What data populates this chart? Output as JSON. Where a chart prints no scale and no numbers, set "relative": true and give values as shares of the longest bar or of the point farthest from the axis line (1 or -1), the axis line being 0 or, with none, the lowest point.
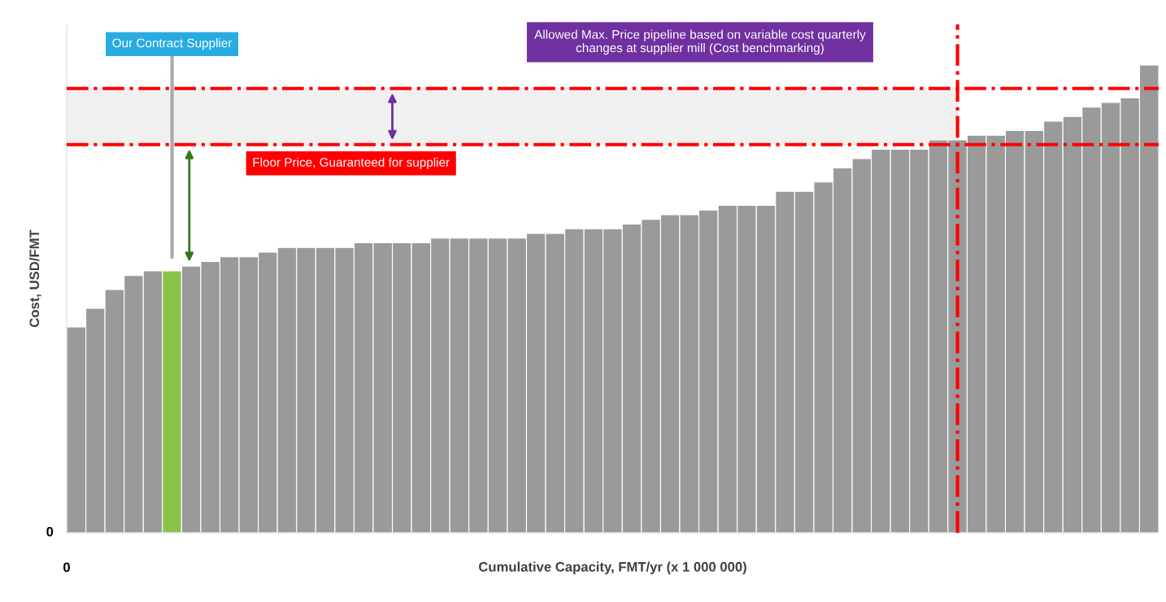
{
  "chart_data": {
    "type": "bar",
    "relative": true,
    "xlabel": "Cumulative Capacity, FMT/yr (x 1 000 000)",
    "ylabel": "Cost, USD/FMT",
    "categories": [
      null,
      null,
      null,
      null,
      null,
      null,
      null,
      null,
      null,
      null,
      null,
      null,
      null,
      null,
      null,
      null,
      null,
      null,
      null,
      null,
      null,
      null,
      null,
      null,
      null,
      null,
      null,
      null,
      null,
      null,
      null,
      null,
      null,
      null,
      null,
      null,
      null,
      null,
      null,
      null,
      null,
      null,
      null,
      null,
      null,
      null,
      null,
      null,
      null,
      null,
      null,
      null,
      null,
      null,
      null,
      null,
      null
    ],
    "values": [
      0.44,
      0.48,
      0.52,
      0.55,
      0.56,
      0.56,
      0.57,
      0.58,
      0.59,
      0.59,
      0.6,
      0.61,
      0.61,
      0.61,
      0.61,
      0.62,
      0.62,
      0.62,
      0.62,
      0.63,
      0.63,
      0.63,
      0.63,
      0.63,
      0.64,
      0.64,
      0.65,
      0.65,
      0.65,
      0.66,
      0.67,
      0.68,
      0.68,
      0.69,
      0.7,
      0.7,
      0.7,
      0.73,
      0.73,
      0.75,
      0.78,
      0.8,
      0.82,
      0.82,
      0.82,
      0.84,
      0.84,
      0.85,
      0.85,
      0.86,
      0.86,
      0.88,
      0.89,
      0.91,
      0.92,
      0.93,
      1
    ],
    "colors": [
      "#9a9a9a",
      "#9a9a9a",
      "#9a9a9a",
      "#9a9a9a",
      "#9a9a9a",
      "#8bc34a",
      "#9a9a9a",
      "#9a9a9a",
      "#9a9a9a",
      "#9a9a9a",
      "#9a9a9a",
      "#9a9a9a",
      "#9a9a9a",
      "#9a9a9a",
      "#9a9a9a",
      "#9a9a9a",
      "#9a9a9a",
      "#9a9a9a",
      "#9a9a9a",
      "#9a9a9a",
      "#9a9a9a",
      "#9a9a9a",
      "#9a9a9a",
      "#9a9a9a",
      "#9a9a9a",
      "#9a9a9a",
      "#9a9a9a",
      "#9a9a9a",
      "#9a9a9a",
      "#9a9a9a",
      "#9a9a9a",
      "#9a9a9a",
      "#9a9a9a",
      "#9a9a9a",
      "#9a9a9a",
      "#9a9a9a",
      "#9a9a9a",
      "#9a9a9a",
      "#9a9a9a",
      "#9a9a9a",
      "#9a9a9a",
      "#9a9a9a",
      "#9a9a9a",
      "#9a9a9a",
      "#9a9a9a",
      "#9a9a9a",
      "#9a9a9a",
      "#9a9a9a",
      "#9a9a9a",
      "#9a9a9a",
      "#9a9a9a",
      "#9a9a9a",
      "#9a9a9a",
      "#9a9a9a",
      "#9a9a9a",
      "#9a9a9a",
      "#9a9a9a"
    ],
    "ref_lines": [
      {
        "axis": "y",
        "value": 0.83,
        "label": "Floor Price, Guaranteed for supplier",
        "color": "#ff0000",
        "line_style": "dashdot"
      },
      {
        "axis": "y",
        "value": 0.95,
        "label": null,
        "color": "#ff0000",
        "line_style": "dashdot"
      }
    ],
    "bands": [
      {
        "axis": "y",
        "from": 0.83,
        "to": 0.95,
        "label": "Allowed Max. Price pipeline based on variable cost quarterly\nchanges at supplier mill (Cost benchmarking)",
        "color": "#f0f0f0"
      }
    ],
    "annotations": [
      "Our Contract Supplier",
      "0",
      "0"
    ]
  }
}
